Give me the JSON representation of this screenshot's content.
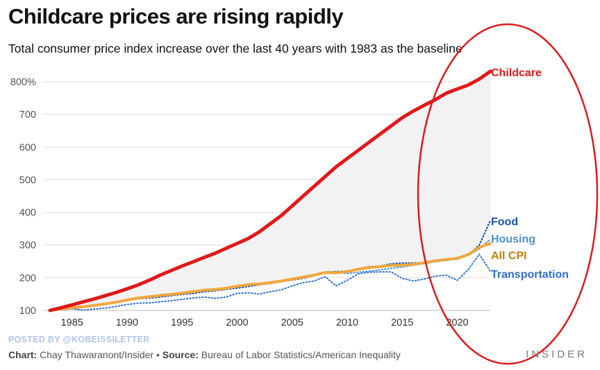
{
  "header": {
    "title": "Childcare prices are rising rapidly",
    "subtitle": "Total consumer price index increase over the last 40 years with 1983 as the baseline"
  },
  "footer": {
    "watermark": "POSTED BY @KOBEISSILETTER",
    "chart_label": "Chart:",
    "chart_author": "Chay Thawaranont/Insider",
    "separator": "•",
    "source_label": "Source:",
    "source_text": "Bureau of Labor Statistics/American Inequality",
    "brand": "INSIDER"
  },
  "chart_data": {
    "type": "line",
    "title": "Childcare prices are rising rapidly",
    "subtitle": "Total consumer price index increase over the last 40 years with 1983 as the baseline",
    "xlabel": "",
    "ylabel": "",
    "xlim": [
      1983,
      2023
    ],
    "ylim": [
      100,
      800
    ],
    "x_ticks": [
      1985,
      1990,
      1995,
      2000,
      2005,
      2010,
      2015,
      2020
    ],
    "y_ticks": [
      100,
      200,
      300,
      400,
      500,
      600,
      700,
      800
    ],
    "y_tick_labels": [
      "100",
      "200",
      "300",
      "400",
      "500",
      "600",
      "700",
      "800%"
    ],
    "grid": "horizontal",
    "legend": "direct labels at right end of lines",
    "annotation": "red ellipse circling 2019–2023",
    "x": [
      1983,
      1984,
      1985,
      1986,
      1987,
      1988,
      1989,
      1990,
      1991,
      1992,
      1993,
      1994,
      1995,
      1996,
      1997,
      1998,
      1999,
      2000,
      2001,
      2002,
      2003,
      2004,
      2005,
      2006,
      2007,
      2008,
      2009,
      2010,
      2011,
      2012,
      2013,
      2014,
      2015,
      2016,
      2017,
      2018,
      2019,
      2020,
      2021,
      2022,
      2023
    ],
    "series": [
      {
        "name": "Childcare",
        "color": "#e0191b",
        "style": "solid-thick",
        "values": [
          100,
          108,
          117,
          126,
          135,
          145,
          155,
          166,
          178,
          192,
          208,
          222,
          236,
          249,
          262,
          275,
          290,
          305,
          320,
          340,
          365,
          390,
          420,
          450,
          480,
          510,
          540,
          565,
          590,
          615,
          640,
          665,
          690,
          710,
          728,
          745,
          765,
          778,
          790,
          808,
          832
        ]
      },
      {
        "name": "Food",
        "color": "#1a4fb4",
        "style": "dotted",
        "values": [
          100,
          104,
          107,
          110,
          114,
          120,
          127,
          133,
          136,
          138,
          141,
          145,
          149,
          152,
          157,
          160,
          164,
          168,
          173,
          178,
          182,
          188,
          193,
          198,
          206,
          218,
          219,
          220,
          228,
          234,
          236,
          243,
          245,
          245,
          247,
          250,
          253,
          262,
          270,
          300,
          375
        ]
      },
      {
        "name": "Housing",
        "color": "#4a8fd8",
        "style": "dotted",
        "values": [
          100,
          104,
          109,
          113,
          117,
          121,
          126,
          131,
          135,
          138,
          141,
          145,
          149,
          153,
          157,
          161,
          166,
          171,
          176,
          181,
          185,
          190,
          195,
          202,
          208,
          214,
          215,
          213,
          217,
          220,
          224,
          229,
          233,
          238,
          243,
          249,
          255,
          260,
          268,
          288,
          318
        ]
      },
      {
        "name": "All CPI",
        "color": "#f2a73d",
        "style": "solid",
        "values": [
          100,
          104,
          108,
          111,
          115,
          120,
          125,
          132,
          138,
          142,
          146,
          149,
          153,
          158,
          162,
          164,
          168,
          174,
          179,
          181,
          185,
          190,
          196,
          202,
          208,
          216,
          215,
          219,
          226,
          231,
          234,
          238,
          238,
          241,
          246,
          252,
          256,
          259,
          271,
          293,
          305
        ]
      },
      {
        "name": "Transportation",
        "color": "#2f6fd1",
        "style": "dotted",
        "values": [
          100,
          102,
          105,
          101,
          104,
          107,
          112,
          118,
          122,
          123,
          126,
          130,
          134,
          138,
          141,
          137,
          141,
          152,
          154,
          150,
          157,
          163,
          175,
          185,
          190,
          203,
          175,
          192,
          212,
          217,
          218,
          218,
          198,
          190,
          196,
          205,
          208,
          192,
          225,
          272,
          220
        ]
      }
    ],
    "series_labels": [
      "Food",
      "Housing",
      "All CPI",
      "Transportation",
      "Childcare"
    ]
  }
}
